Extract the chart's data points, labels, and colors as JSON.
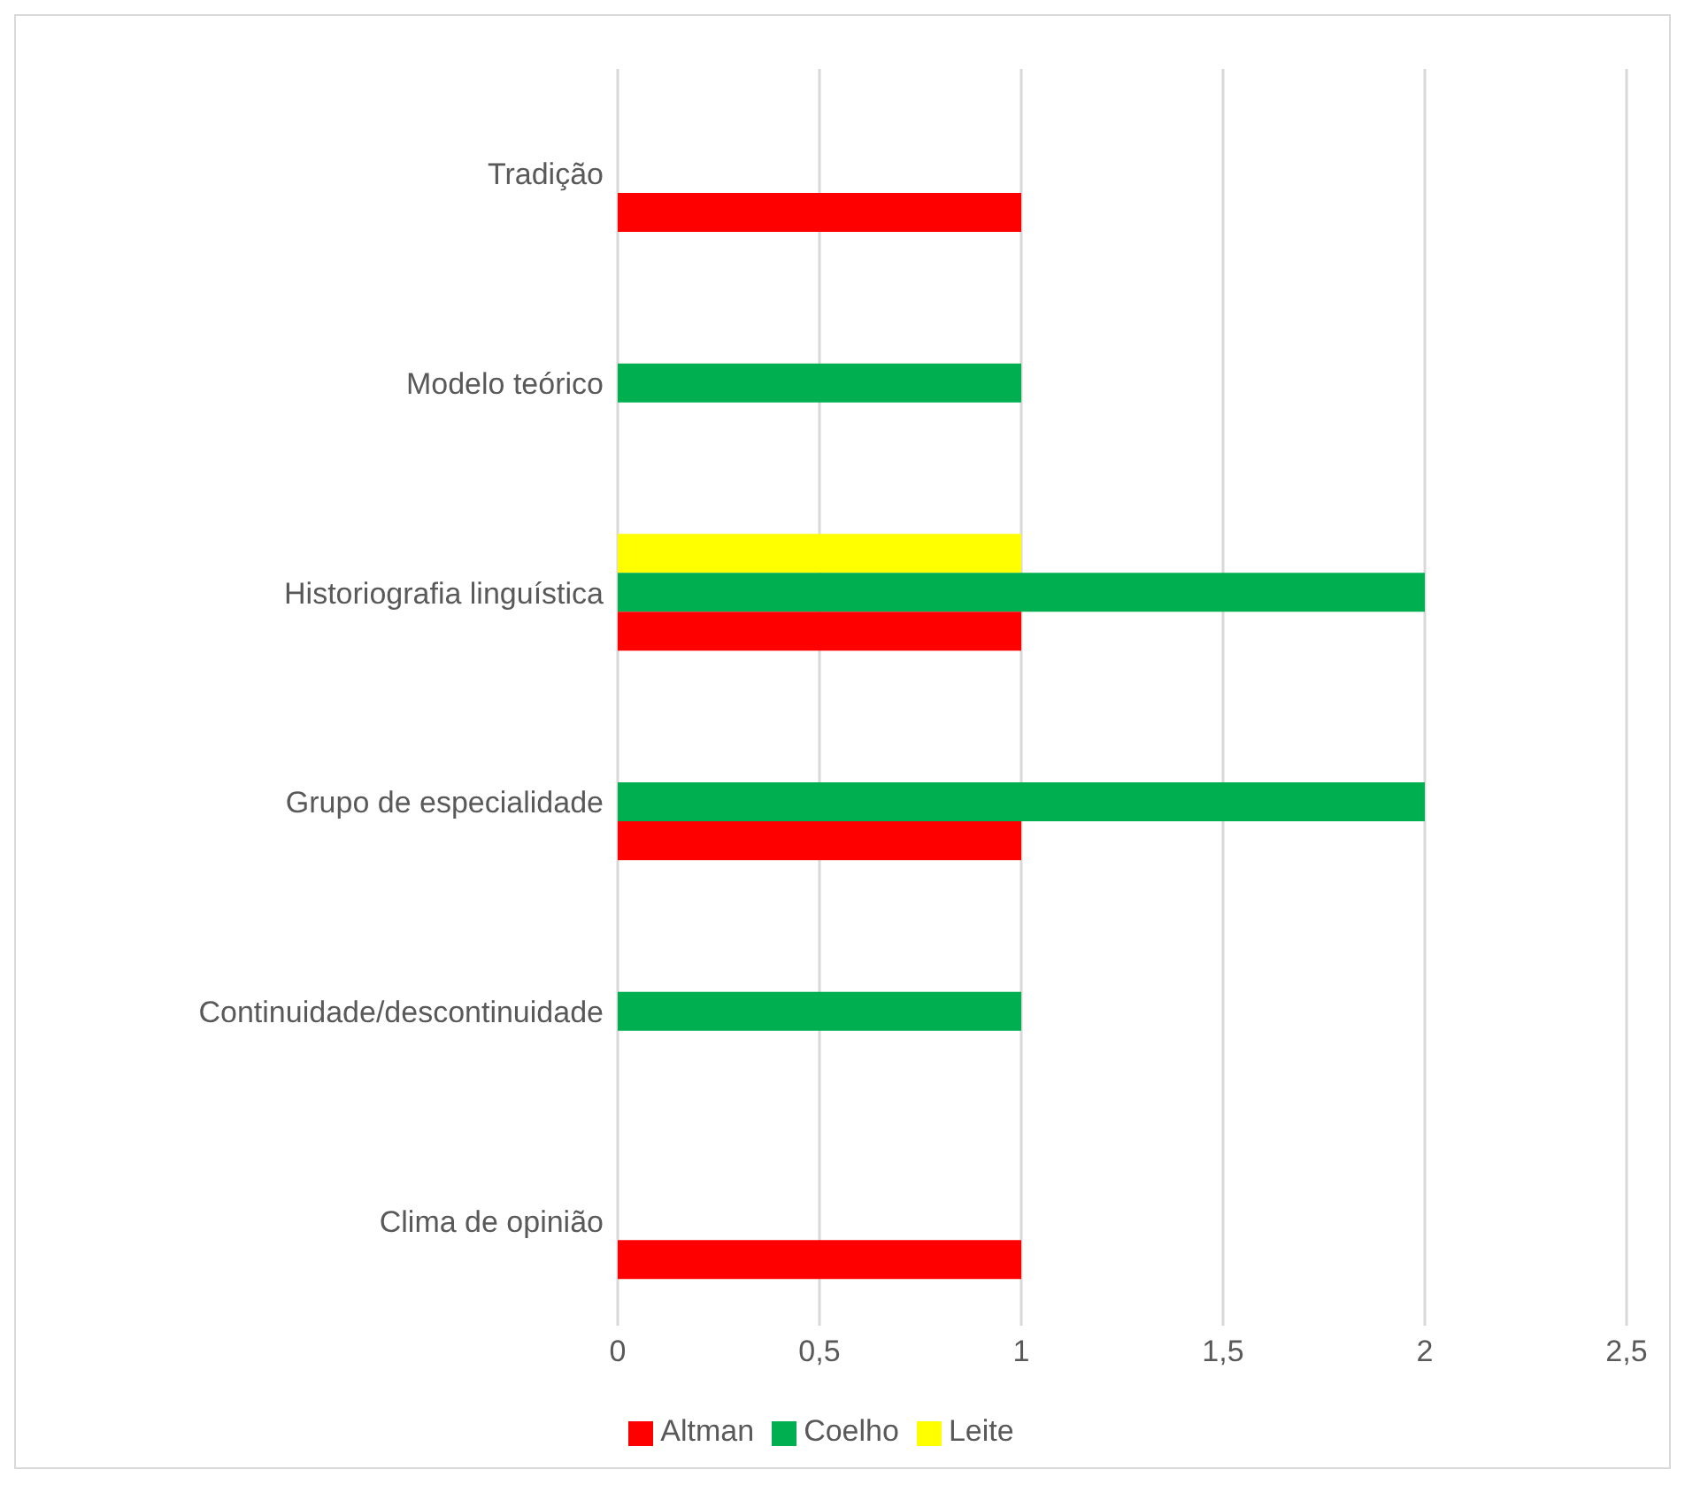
{
  "chart_data": {
    "type": "bar",
    "orientation": "horizontal",
    "categories": [
      "Tradição",
      "Modelo teórico",
      "Historiografia linguística",
      "Grupo de especialidade",
      "Continuidade/descontinuidade",
      "Clima de opinião"
    ],
    "series": [
      {
        "name": "Leite",
        "color": "#ffff00",
        "values": [
          null,
          null,
          1,
          null,
          null,
          null
        ]
      },
      {
        "name": "Coelho",
        "color": "#00b050",
        "values": [
          null,
          1,
          2,
          2,
          1,
          null
        ]
      },
      {
        "name": "Altman",
        "color": "#ff0000",
        "values": [
          1,
          null,
          1,
          1,
          null,
          1
        ]
      }
    ],
    "xlim": [
      0,
      2.5
    ],
    "xticks": [
      0,
      {
        "value": 0.5,
        "label": "0,5"
      },
      1,
      {
        "value": 1.5,
        "label": "1,5"
      },
      2,
      {
        "value": 2.5,
        "label": "2,5"
      }
    ],
    "grid": "x",
    "legend": "bottom"
  }
}
